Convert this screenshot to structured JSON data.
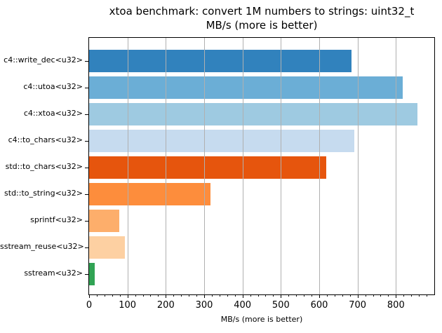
{
  "figure": {
    "background": "#ffffff",
    "spine_color": "#000000"
  },
  "chart_data": {
    "type": "bar",
    "orientation": "horizontal",
    "title": "xtoa benchmark: convert 1M numbers to strings: uint32_t\nMB/s (more is better)",
    "title_lines": [
      "xtoa benchmark: convert 1M numbers to strings: uint32_t",
      "MB/s (more is better)"
    ],
    "xlabel": "MB/s (more is better)",
    "ylabel": "",
    "categories": [
      "c4::write_dec<u32>",
      "c4::utoa<u32>",
      "c4::xtoa<u32>",
      "c4::to_chars<u32>",
      "std::to_chars<u32>",
      "std::to_string<u32>",
      "sprintf<u32>",
      "sstream_reuse<u32>",
      "sstream<u32>"
    ],
    "values": [
      685,
      818,
      857,
      692,
      619,
      316,
      78,
      93,
      15
    ],
    "bar_colors": [
      "#3182bd",
      "#6baed6",
      "#9ecae1",
      "#c6dbef",
      "#e6550d",
      "#fd8d3c",
      "#fdae6b",
      "#fdd0a2",
      "#31a354"
    ],
    "xlim": [
      0,
      900
    ],
    "xticks": [
      0,
      100,
      200,
      300,
      400,
      500,
      600,
      700,
      800
    ],
    "xtick_labels": [
      "0",
      "100",
      "200",
      "300",
      "400",
      "500",
      "600",
      "700",
      "800"
    ],
    "minor_tick_step": 20,
    "grid": true,
    "grid_axis": "x",
    "grid_color": "#b0b0b0",
    "legend": null
  }
}
